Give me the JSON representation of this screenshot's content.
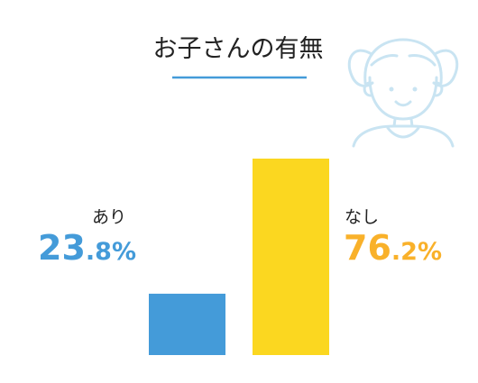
{
  "chart_data": {
    "type": "bar",
    "title": "お子さんの有無",
    "categories": [
      "あり",
      "なし"
    ],
    "values": [
      23.8,
      76.2
    ],
    "value_labels": [
      {
        "integer": "23",
        "decimal": ".8",
        "unit": "%"
      },
      {
        "integer": "76",
        "decimal": ".2",
        "unit": "%"
      }
    ],
    "colors": {
      "bars": [
        "#449bd9",
        "#fbd720"
      ],
      "labels": [
        "#449bd9",
        "#f9b12a"
      ],
      "title_underline": "#449bd9",
      "illustration": "#c9e4f2"
    },
    "ylim": [
      0,
      76.2
    ],
    "grid": false,
    "legend": "none",
    "illustration_icon": "girl-with-pigtails-icon"
  }
}
